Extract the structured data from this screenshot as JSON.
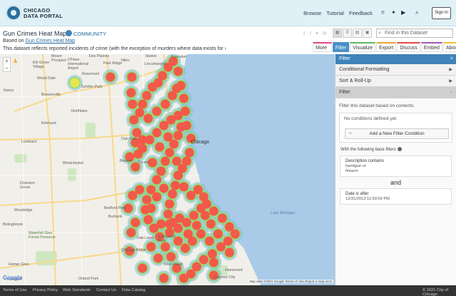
{
  "header": {
    "logo_line1": "CHICAGO",
    "logo_line2": "DATA PORTAL",
    "nav": [
      "Browse",
      "Tutorial",
      "Feedback"
    ],
    "social_icons": [
      "github-icon",
      "twitter-icon",
      "youtube-icon"
    ],
    "sign_in": "Sign In"
  },
  "dataset": {
    "title": "Gun Crimes Heat Map",
    "community": "COMMUNITY",
    "based_on_label": "Based on",
    "based_on_link": "Gun Crimes Heat Map",
    "description": "This dataset reflects reported incidents of crime (with the exception of murders where data exists for",
    "desc_more": "›",
    "search_placeholder": "Find in this Dataset"
  },
  "tabs": [
    "More Views",
    "Filter",
    "Visualize",
    "Export",
    "Discuss",
    "Embed",
    "About"
  ],
  "active_tab": "Filter",
  "tab_colors": [
    "#e2478a",
    "#4a90c8",
    "#5cb85c",
    "#e8a33a",
    "#e24a4a",
    "#9b59b6",
    "#f0c330"
  ],
  "map": {
    "labels": {
      "ohare": "O'Hare\nInternational\nAirport",
      "elk": "Elk Grove\nVillage",
      "rosemont": "Rosemont",
      "wood": "Wood Dale",
      "schiller": "Schiller Park",
      "bensenville": "Bensenville",
      "elmhurst": "Elmhurst",
      "lombard": "Lombard",
      "oakpark": "Oak Park",
      "cicero": "Cicero",
      "berwyn": "Berwyn",
      "chicago": "Chicago",
      "westchester": "Westchester",
      "downers": "Downers\nGrove",
      "woodridge": "Woodridge",
      "bolingbrook": "Bolingbrook",
      "bedford": "Bedford Park",
      "burbank": "Burbank",
      "oaklawn": "Oak Lawn",
      "evergreen": "Evergreen\nPark",
      "blueisland": "Blue Island",
      "homer": "Homer Glen",
      "lockport": "Lockport",
      "chicagoridge": "Chicago Ridge",
      "waterfall": "Waterfall Glen\nForest Preserve",
      "lincolnwood": "Lincolnwood",
      "evanston": "Evanston",
      "skokie": "Skokie",
      "niles": "Niles",
      "parkridge": "Park Ridge",
      "desplaines": "Des Plaines",
      "mtprospect": "Mount\nProspect",
      "itasca": "Itasca",
      "northlake": "Northlake",
      "orland": "Orland Park",
      "hammond": "Hammond",
      "calumet": "Calumet City",
      "lakemich": "Lake Michigan"
    },
    "credit": "Map data ©2021 Google   Terms of Use   Report a map error",
    "google": "Google"
  },
  "sidebar": {
    "title": "Filter",
    "sections": [
      "Conditional Formatting",
      "Sort & Roll-Up",
      "Filter"
    ],
    "intro": "Filter this dataset based on contents.",
    "no_conditions": "No conditions defined yet.",
    "add_button": "Add a New Filter Condition",
    "base_filters_label": "With the following base filters",
    "filters": [
      {
        "title": "Description  contains",
        "values": [
          "handgun or",
          "firearm"
        ]
      },
      {
        "title": "Date  is after",
        "values": [
          "12/31/2013 11:59:59 PM"
        ]
      }
    ],
    "and_label": "and"
  },
  "footer": {
    "links": [
      "Terms of Use",
      "Privacy Policy",
      "Web Standards",
      "Contact Us",
      "Data Catalog"
    ],
    "copyright": "© 2021 City of Chicago"
  },
  "colors": {
    "accent": "#4a90c8",
    "hot": "#f2594b",
    "mid": "#96dc6e",
    "cool": "#7ec0e0"
  }
}
